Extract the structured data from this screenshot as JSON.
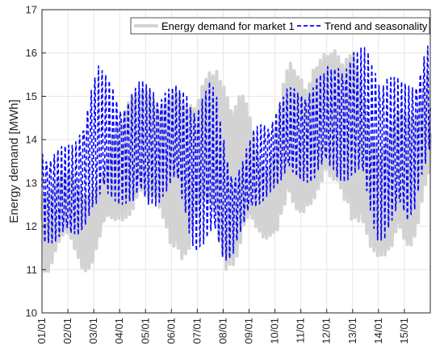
{
  "chart_data": {
    "type": "line",
    "xlabel": "",
    "ylabel": "Energy demand [MWh]",
    "ylim": [
      10,
      17
    ],
    "yticks": [
      10,
      11,
      12,
      13,
      14,
      15,
      16,
      17
    ],
    "x_unit": "day",
    "xlim": [
      0,
      15
    ],
    "xtick_labels": [
      "01/01",
      "02/01",
      "03/01",
      "04/01",
      "05/01",
      "06/01",
      "07/01",
      "08/01",
      "09/01",
      "10/01",
      "11/01",
      "12/01",
      "13/01",
      "14/01",
      "15/01"
    ],
    "grid": true,
    "legend_position": "top-right",
    "series": [
      {
        "name": "Energy demand for market 1",
        "color": "#d3d3d3",
        "style": "solid",
        "peaks": [
          13.2,
          13.3,
          13.0,
          15.2,
          15.3,
          15.2,
          15.7,
          15.6,
          13.6,
          15.9,
          16.0,
          16.6,
          14.3,
          14.8,
          15.7
        ],
        "troughs": [
          10.8,
          11.5,
          10.9,
          12.0,
          12.1,
          12.5,
          10.5,
          12.4,
          10.8,
          11.6,
          11.7,
          12.0,
          12.4,
          12.8,
          11.3,
          11.2,
          11.2,
          12.9
        ]
      },
      {
        "name": "Trend and seasonality",
        "color": "#0000ff",
        "style": "dashed",
        "peaks": [
          14.0,
          14.0,
          15.8,
          15.2,
          15.5,
          15.3,
          15.5,
          13.5,
          14.6,
          15.3,
          15.6,
          16.2,
          16.2,
          15.5,
          16.4
        ],
        "troughs": [
          11.5,
          11.4,
          12.1,
          12.4,
          12.2,
          12.7,
          11.3,
          11.0,
          12.0,
          12.8,
          12.9,
          13.0,
          12.9,
          11.6,
          11.7,
          13.4
        ]
      }
    ]
  }
}
